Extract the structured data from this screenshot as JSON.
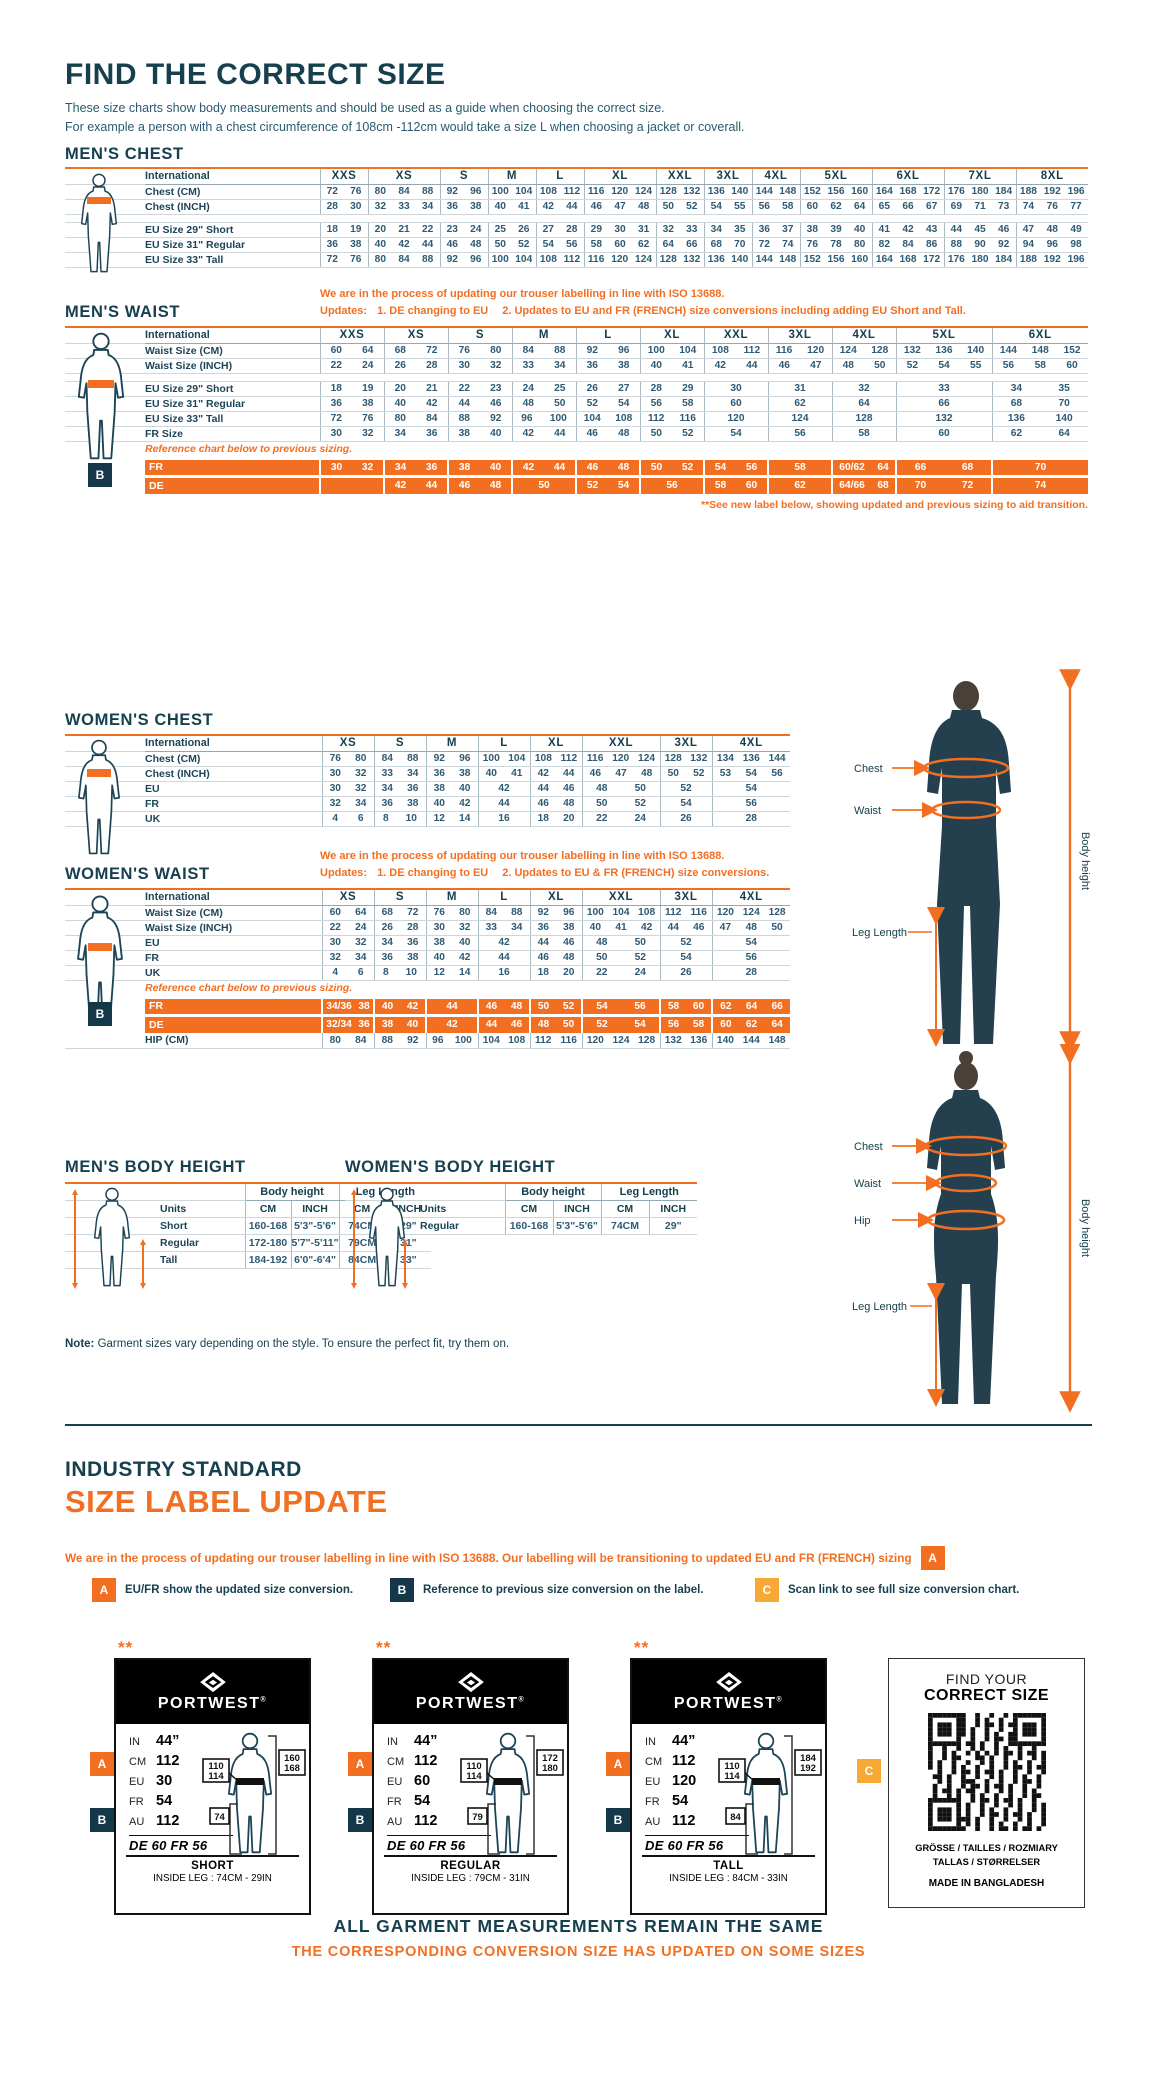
{
  "page": {
    "title": "FIND THE CORRECT SIZE",
    "intro1": "These size charts show body measurements and should be used as a guide when choosing the correct size.",
    "intro2": "For example a person with a chest circumference of 108cm -112cm would take a size L when choosing a jacket or coverall."
  },
  "colors": {
    "navy": "#17404e",
    "orange": "#f26f21",
    "amber": "#f7a934"
  },
  "tables": {
    "mens_chest": {
      "heading": "MEN'S CHEST",
      "first_col": "International",
      "groups": [
        {
          "l": "XXS",
          "n": 2
        },
        {
          "l": "XS",
          "n": 3
        },
        {
          "l": "S",
          "n": 2
        },
        {
          "l": "M",
          "n": 2
        },
        {
          "l": "L",
          "n": 2
        },
        {
          "l": "XL",
          "n": 3
        },
        {
          "l": "XXL",
          "n": 2
        },
        {
          "l": "3XL",
          "n": 2
        },
        {
          "l": "4XL",
          "n": 2
        },
        {
          "l": "5XL",
          "n": 3
        },
        {
          "l": "6XL",
          "n": 3
        },
        {
          "l": "7XL",
          "n": 3
        },
        {
          "l": "8XL",
          "n": 3
        }
      ],
      "rows": [
        {
          "t": "d",
          "label": "Chest (CM)",
          "c": [
            "72 76",
            "80 84 88",
            "92 96",
            "100 104",
            "108 112",
            "116 120 124",
            "128 132",
            "136 140",
            "144 148",
            "152 156 160",
            "164 168 172",
            "176 180 184",
            "188 192 196"
          ]
        },
        {
          "t": "d",
          "label": "Chest (INCH)",
          "c": [
            "28 30",
            "32 33 34",
            "36 38",
            "40 41",
            "42 44",
            "46 47 48",
            "50 52",
            "54 55",
            "56 58",
            "60 62 64",
            "65 66 67",
            "69 71 73",
            "74 76 77"
          ]
        },
        {
          "t": "sp"
        },
        {
          "t": "d",
          "label": "EU Size 29\" Short",
          "c": [
            "18 19",
            "20 21 22",
            "23 24",
            "25 26",
            "27 28",
            "29 30 31",
            "32 33",
            "34 35",
            "36 37",
            "38 39 40",
            "41 42 43",
            "44 45 46",
            "47 48 49"
          ]
        },
        {
          "t": "d",
          "label": "EU Size 31\" Regular",
          "c": [
            "36 38",
            "40 42 44",
            "46 48",
            "50 52",
            "54 56",
            "58 60 62",
            "64 66",
            "68 70",
            "72 74",
            "76 78 80",
            "82 84 86",
            "88 90 92",
            "94 96 98"
          ]
        },
        {
          "t": "d",
          "label": "EU Size 33\" Tall",
          "c": [
            "72 76",
            "80 84 88",
            "92 96",
            "100 104",
            "108 112",
            "116 120 124",
            "128 132",
            "136 140",
            "144 148",
            "152 156 160",
            "164 168 172",
            "176 180 184",
            "188 192 196"
          ]
        }
      ]
    },
    "mens_waist": {
      "heading": "MEN'S WAIST",
      "first_col": "International",
      "note": {
        "l1": "We are in the process of updating our trouser labelling in line with ISO 13688.",
        "updates": "Updates:",
        "n1": "1.",
        "t1": "DE changing to EU",
        "n2": "2.",
        "t2": "Updates to EU and FR (FRENCH) size conversions including adding EU Short and Tall."
      },
      "groups": [
        {
          "l": "XXS",
          "n": 2
        },
        {
          "l": "XS",
          "n": 2
        },
        {
          "l": "S",
          "n": 2
        },
        {
          "l": "M",
          "n": 2
        },
        {
          "l": "L",
          "n": 2
        },
        {
          "l": "XL",
          "n": 2
        },
        {
          "l": "XXL",
          "n": 2
        },
        {
          "l": "3XL",
          "n": 2
        },
        {
          "l": "4XL",
          "n": 2
        },
        {
          "l": "5XL",
          "n": 3
        },
        {
          "l": "6XL",
          "n": 3
        }
      ],
      "rows": [
        {
          "t": "d",
          "label": "Waist Size (CM)",
          "c": [
            "60 64",
            "68 72",
            "76 80",
            "84 88",
            "92 96",
            "100 104",
            "108 112",
            "116 120",
            "124 128",
            "132 136 140",
            "144 148 152"
          ]
        },
        {
          "t": "d",
          "label": "Waist Size (INCH)",
          "c": [
            "22 24",
            "26 28",
            "30 32",
            "33 34",
            "36 38",
            "40 41",
            "42 44",
            "46 47",
            "48 50",
            "52 54 55",
            "56 58 60"
          ]
        },
        {
          "t": "sp"
        },
        {
          "t": "d",
          "label": "EU Size 29\" Short",
          "c": [
            "18 19",
            "20 21",
            "22 23",
            "24 25",
            "26 27",
            "28 29",
            "30",
            "31",
            "32",
            "33",
            "34 35"
          ]
        },
        {
          "t": "d",
          "label": "EU Size 31\" Regular",
          "c": [
            "36 38",
            "40 42",
            "44 46",
            "48 50",
            "52 54",
            "56 58",
            "60",
            "62",
            "64",
            "66",
            "68 70"
          ]
        },
        {
          "t": "d",
          "label": "EU Size 33\" Tall",
          "c": [
            "72 76",
            "80 84",
            "88 92",
            "96 100",
            "104 108",
            "112 116",
            "120",
            "124",
            "128",
            "132",
            "136 140"
          ]
        },
        {
          "t": "d",
          "label": "FR Size",
          "c": [
            "30 32",
            "34 36",
            "38 40",
            "42 44",
            "46 48",
            "50 52",
            "54",
            "56",
            "58",
            "60",
            "62 64"
          ]
        },
        {
          "t": "note",
          "text": "Reference chart below to previous sizing."
        },
        {
          "t": "ref",
          "label": "FR",
          "c": [
            "30 32",
            "34 36",
            "38 40",
            "42 44",
            "46 48",
            "50 52",
            "54 56",
            "58",
            "60/62 64",
            "66 68",
            "70"
          ]
        },
        {
          "t": "ref",
          "label": "DE",
          "c": [
            "",
            "42 44",
            "46 48",
            "50",
            "52 54",
            "56",
            "58 60",
            "62",
            "64/66 68",
            "70 72",
            "74"
          ]
        }
      ],
      "ref_badge": "B",
      "footnote": "**See new label below, showing updated and previous sizing to aid transition."
    },
    "womens_chest": {
      "heading": "WOMEN'S CHEST",
      "first_col": "International",
      "groups": [
        {
          "l": "XS",
          "n": 2
        },
        {
          "l": "S",
          "n": 2
        },
        {
          "l": "M",
          "n": 2
        },
        {
          "l": "L",
          "n": 2
        },
        {
          "l": "XL",
          "n": 2
        },
        {
          "l": "XXL",
          "n": 3
        },
        {
          "l": "3XL",
          "n": 2
        },
        {
          "l": "4XL",
          "n": 3
        }
      ],
      "rows": [
        {
          "t": "d",
          "label": "Chest (CM)",
          "c": [
            "76 80",
            "84 88",
            "92 96",
            "100 104",
            "108 112",
            "116 120 124",
            "128 132",
            "134 136 144"
          ]
        },
        {
          "t": "d",
          "label": "Chest (INCH)",
          "c": [
            "30 32",
            "33 34",
            "36 38",
            "40 41",
            "42 44",
            "46 47 48",
            "50 52",
            "53 54 56"
          ]
        },
        {
          "t": "d",
          "label": "EU",
          "c": [
            "30 32",
            "34 36",
            "38 40",
            "42",
            "44 46",
            "48 50",
            "52",
            "54"
          ]
        },
        {
          "t": "d",
          "label": "FR",
          "c": [
            "32 34",
            "36 38",
            "40 42",
            "44",
            "46 48",
            "50 52",
            "54",
            "56"
          ]
        },
        {
          "t": "d",
          "label": "UK",
          "c": [
            "4 6",
            "8 10",
            "12 14",
            "16",
            "18 20",
            "22 24",
            "26",
            "28"
          ]
        }
      ]
    },
    "womens_waist": {
      "heading": "WOMEN'S WAIST",
      "first_col": "International",
      "note": {
        "l1": "We are in the process of updating our trouser labelling in line with ISO 13688.",
        "updates": "Updates:",
        "n1": "1.",
        "t1": "DE changing to EU",
        "n2": "2.",
        "t2": "Updates to EU & FR (FRENCH) size conversions."
      },
      "groups": [
        {
          "l": "XS",
          "n": 2
        },
        {
          "l": "S",
          "n": 2
        },
        {
          "l": "M",
          "n": 2
        },
        {
          "l": "L",
          "n": 2
        },
        {
          "l": "XL",
          "n": 2
        },
        {
          "l": "XXL",
          "n": 3
        },
        {
          "l": "3XL",
          "n": 2
        },
        {
          "l": "4XL",
          "n": 3
        }
      ],
      "rows": [
        {
          "t": "d",
          "label": "Waist Size (CM)",
          "c": [
            "60 64",
            "68 72",
            "76 80",
            "84 88",
            "92 96",
            "100 104 108",
            "112 116",
            "120 124 128"
          ]
        },
        {
          "t": "d",
          "label": "Waist Size (INCH)",
          "c": [
            "22 24",
            "26 28",
            "30 32",
            "33 34",
            "36 38",
            "40 41 42",
            "44 46",
            "47 48 50"
          ]
        },
        {
          "t": "d",
          "label": "EU",
          "c": [
            "30 32",
            "34 36",
            "38 40",
            "42",
            "44 46",
            "48 50",
            "52",
            "54"
          ]
        },
        {
          "t": "d",
          "label": "FR",
          "c": [
            "32 34",
            "36 38",
            "40 42",
            "44",
            "46 48",
            "50 52",
            "54",
            "56"
          ]
        },
        {
          "t": "d",
          "label": "UK",
          "c": [
            "4 6",
            "8 10",
            "12 14",
            "16",
            "18 20",
            "22 24",
            "26",
            "28"
          ]
        },
        {
          "t": "note",
          "text": "Reference chart below to previous sizing."
        },
        {
          "t": "ref",
          "label": "FR",
          "c": [
            "34/36 38",
            "40 42",
            "44",
            "46 48",
            "50 52",
            "54 56",
            "58 60",
            "62 64 66"
          ]
        },
        {
          "t": "ref",
          "label": "DE",
          "c": [
            "32/34 36",
            "38 40",
            "42",
            "44 46",
            "48 50",
            "52 54",
            "56 58",
            "60 62 64"
          ]
        },
        {
          "t": "d",
          "label": "HIP (CM)",
          "c": [
            "80 84",
            "88 92",
            "96 100",
            "104 108",
            "112 116",
            "120 124 128",
            "132 136",
            "140 144 148"
          ]
        }
      ],
      "ref_badge": "B"
    }
  },
  "height_tables": {
    "mens": {
      "heading": "MEN'S BODY HEIGHT",
      "g1": "Body height",
      "g2": "Leg Length",
      "units": "Units",
      "sub": [
        "CM",
        "INCH",
        "CM",
        "INCH"
      ],
      "rows": [
        {
          "label": "Short",
          "c": [
            "160-168",
            "5'3\"-5'6\"",
            "74CM",
            "29\""
          ]
        },
        {
          "label": "Regular",
          "c": [
            "172-180",
            "5'7\"-5'11\"",
            "79CM",
            "31\""
          ]
        },
        {
          "label": "Tall",
          "c": [
            "184-192",
            "6'0\"-6'4\"",
            "84CM",
            "33\""
          ]
        }
      ]
    },
    "womens": {
      "heading": "WOMEN'S BODY HEIGHT",
      "g1": "Body height",
      "g2": "Leg Length",
      "units": "Units",
      "sub": [
        "CM",
        "INCH",
        "CM",
        "INCH"
      ],
      "rows": [
        {
          "label": "Regular",
          "c": [
            "160-168",
            "5'3\"-5'6\"",
            "74CM",
            "29\""
          ]
        }
      ]
    }
  },
  "figures": {
    "man": {
      "chest": "Chest",
      "waist": "Waist",
      "leg": "Leg Length",
      "height": "Body height"
    },
    "woman": {
      "chest": "Chest",
      "waist": "Waist",
      "hip": "Hip",
      "leg": "Leg Length",
      "height": "Body height"
    }
  },
  "fit_note": {
    "b": "Note:",
    "t": " Garment sizes vary depending on the style. To ensure the perfect fit, try them on."
  },
  "update_section": {
    "h1": "INDUSTRY STANDARD",
    "h2": "SIZE LABEL UPDATE",
    "para": "We are in the process of updating our trouser labelling in line with ISO 13688. Our labelling will be transitioning to updated EU and FR (FRENCH) sizing",
    "para_badge": "A"
  },
  "legend": [
    {
      "k": "A",
      "cls": "a",
      "t": "EU/FR show the updated size conversion."
    },
    {
      "k": "B",
      "cls": "b",
      "t": "Reference to previous size conversion on the label."
    },
    {
      "k": "C",
      "cls": "c",
      "t": "Scan link to see full size conversion chart."
    }
  ],
  "cards": [
    {
      "stars": "**",
      "brand": "PORTWEST",
      "reg": "®",
      "badge_a": "A",
      "badge_b": "B",
      "fields": [
        {
          "l": "IN",
          "v": "44”"
        },
        {
          "l": "CM",
          "v": "112"
        },
        {
          "l": "EU",
          "v": "30"
        },
        {
          "l": "FR",
          "v": "54"
        },
        {
          "l": "AU",
          "v": "112"
        }
      ],
      "prev": "DE 60 FR 56",
      "waist_box": [
        "110",
        "114"
      ],
      "height_box": [
        "160",
        "168"
      ],
      "leg_box": "74",
      "fit": "SHORT",
      "leg": "INSIDE LEG : 74CM - 29IN"
    },
    {
      "stars": "**",
      "brand": "PORTWEST",
      "reg": "®",
      "badge_a": "A",
      "badge_b": "B",
      "fields": [
        {
          "l": "IN",
          "v": "44”"
        },
        {
          "l": "CM",
          "v": "112"
        },
        {
          "l": "EU",
          "v": "60"
        },
        {
          "l": "FR",
          "v": "54"
        },
        {
          "l": "AU",
          "v": "112"
        }
      ],
      "prev": "DE 60 FR 56",
      "waist_box": [
        "110",
        "114"
      ],
      "height_box": [
        "172",
        "180"
      ],
      "leg_box": "79",
      "fit": "REGULAR",
      "leg": "INSIDE LEG : 79CM - 31IN"
    },
    {
      "stars": "**",
      "brand": "PORTWEST",
      "reg": "®",
      "badge_a": "A",
      "badge_b": "B",
      "fields": [
        {
          "l": "IN",
          "v": "44”"
        },
        {
          "l": "CM",
          "v": "112"
        },
        {
          "l": "EU",
          "v": "120"
        },
        {
          "l": "FR",
          "v": "54"
        },
        {
          "l": "AU",
          "v": "112"
        }
      ],
      "prev": "DE 60 FR 56",
      "waist_box": [
        "110",
        "114"
      ],
      "height_box": [
        "184",
        "192"
      ],
      "leg_box": "84",
      "fit": "TALL",
      "leg": "INSIDE LEG : 84CM - 33IN"
    }
  ],
  "qr": {
    "badge": "C",
    "l1": "FIND YOUR",
    "l2": "CORRECT SIZE",
    "langs1": "GRÖSSE / TAILLES / ROZMIARY",
    "langs2": "TALLAS / STØRRELSER",
    "made": "MADE IN BANGLADESH"
  },
  "footer": {
    "l1": "ALL GARMENT MEASUREMENTS REMAIN THE SAME",
    "l2": "THE CORRESPONDING CONVERSION SIZE HAS UPDATED ON SOME SIZES"
  }
}
